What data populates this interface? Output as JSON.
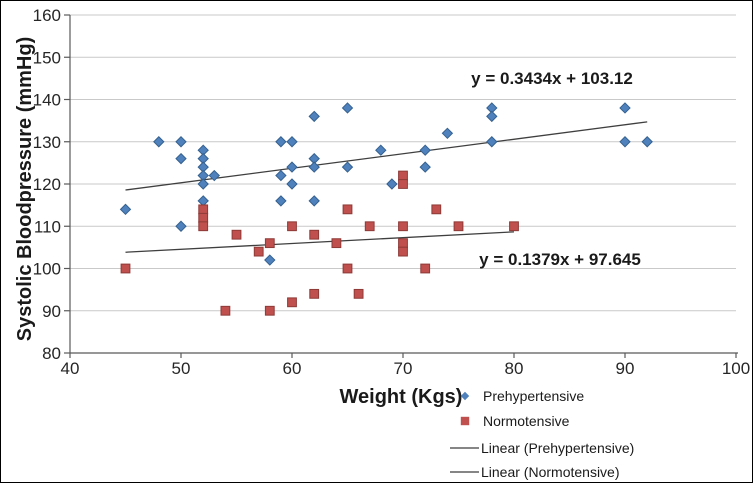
{
  "figure": {
    "background": "#ffffff",
    "border_color": "#000000",
    "gridline_color": "#c9c9c9",
    "axis_color": "#595959",
    "trendline_color": "#3f3f3f"
  },
  "axes": {
    "x_title": "Weight (Kgs)",
    "y_title": "Systolic Bloodpressure (mmHg)"
  },
  "annotations": {
    "prehypertensive_equation": "y = 0.3434x + 103.12",
    "normotensive_equation": "y = 0.1379x + 97.645"
  },
  "legend": {
    "position": "bottom-right",
    "items": [
      {
        "label": "Prehypertensive",
        "marker": "diamond",
        "color": "#4F81BD"
      },
      {
        "label": "Normotensive",
        "marker": "square",
        "color": "#C0504D"
      },
      {
        "label": "Linear (Prehypertensive)",
        "marker": "line",
        "color": "#3f3f3f"
      },
      {
        "label": "Linear (Normotensive)",
        "marker": "line",
        "color": "#3f3f3f"
      }
    ]
  },
  "chart_data": {
    "type": "scatter",
    "title": "",
    "xlabel": "Weight (Kgs)",
    "ylabel": "Systolic Bloodpressure (mmHg)",
    "xlim": [
      40,
      100
    ],
    "ylim": [
      80,
      160
    ],
    "x_ticks": [
      40,
      50,
      60,
      70,
      80,
      90,
      100
    ],
    "y_ticks": [
      80,
      90,
      100,
      110,
      120,
      130,
      140,
      150,
      160
    ],
    "grid": "horizontal-only",
    "legend_position": "bottom-right",
    "series": [
      {
        "name": "Prehypertensive",
        "marker": "diamond",
        "color": "#4F81BD",
        "edge_color": "#35618F",
        "points": [
          [
            45,
            114
          ],
          [
            48,
            130
          ],
          [
            50,
            130
          ],
          [
            50,
            126
          ],
          [
            50,
            110
          ],
          [
            52,
            128
          ],
          [
            52,
            126
          ],
          [
            52,
            124
          ],
          [
            52,
            122
          ],
          [
            52,
            120
          ],
          [
            52,
            116
          ],
          [
            53,
            122
          ],
          [
            58,
            102
          ],
          [
            59,
            130
          ],
          [
            59,
            122
          ],
          [
            59,
            116
          ],
          [
            60,
            130
          ],
          [
            60,
            124
          ],
          [
            60,
            120
          ],
          [
            62,
            136
          ],
          [
            62,
            126
          ],
          [
            62,
            124
          ],
          [
            62,
            116
          ],
          [
            65,
            138
          ],
          [
            65,
            124
          ],
          [
            68,
            128
          ],
          [
            69,
            120
          ],
          [
            72,
            128
          ],
          [
            72,
            124
          ],
          [
            74,
            132
          ],
          [
            78,
            138
          ],
          [
            78,
            136
          ],
          [
            78,
            130
          ],
          [
            90,
            138
          ],
          [
            90,
            130
          ],
          [
            92,
            130
          ]
        ]
      },
      {
        "name": "Normotensive",
        "marker": "square",
        "color": "#C0504D",
        "edge_color": "#8E3A37",
        "points": [
          [
            45,
            100
          ],
          [
            52,
            114
          ],
          [
            52,
            112
          ],
          [
            52,
            110
          ],
          [
            54,
            90
          ],
          [
            55,
            108
          ],
          [
            57,
            104
          ],
          [
            58,
            106
          ],
          [
            58,
            90
          ],
          [
            60,
            110
          ],
          [
            60,
            92
          ],
          [
            62,
            108
          ],
          [
            62,
            94
          ],
          [
            64,
            106
          ],
          [
            65,
            114
          ],
          [
            65,
            100
          ],
          [
            66,
            94
          ],
          [
            67,
            110
          ],
          [
            70,
            122
          ],
          [
            70,
            120
          ],
          [
            70,
            110
          ],
          [
            70,
            106
          ],
          [
            70,
            104
          ],
          [
            72,
            100
          ],
          [
            73,
            114
          ],
          [
            75,
            110
          ],
          [
            80,
            110
          ]
        ]
      }
    ],
    "trendlines": [
      {
        "name": "Linear (Prehypertensive)",
        "equation": "y = 0.3434x + 103.12",
        "slope": 0.3434,
        "intercept": 103.12,
        "x_start": 45,
        "x_end": 92
      },
      {
        "name": "Linear (Normotensive)",
        "equation": "y = 0.1379x + 97.645",
        "slope": 0.1379,
        "intercept": 97.645,
        "x_start": 45,
        "x_end": 80
      }
    ]
  }
}
